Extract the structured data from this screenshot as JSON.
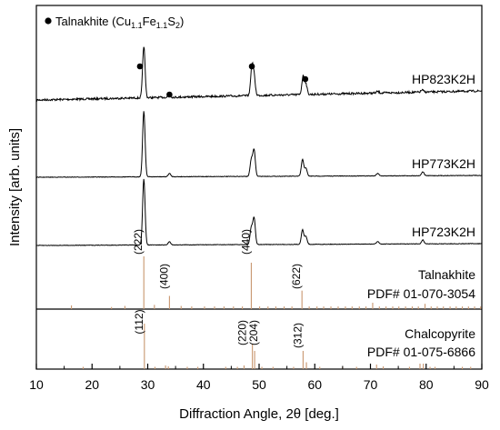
{
  "chart_data": {
    "type": "line",
    "xlabel": "Diffraction Angle, 2θ [deg.]",
    "ylabel": "Intensity [arb. units]",
    "xlim": [
      10,
      90
    ],
    "xticks": [
      10,
      20,
      30,
      40,
      50,
      60,
      70,
      80,
      90
    ],
    "grid": false,
    "legend": {
      "position": "top-left",
      "marker": "filled-circle",
      "text_prefix": "Talnakhite (Cu",
      "sub1": "1.1",
      "text_mid": "Fe",
      "sub2": "1.1",
      "text_mid2": "S",
      "sub3": "2",
      "text_suffix": ")"
    },
    "series": [
      {
        "name": "HP823K2H",
        "noise": "high",
        "peaks": [
          [
            29.3,
            1.0
          ],
          [
            33.9,
            0.05
          ],
          [
            48.7,
            0.55
          ],
          [
            49.1,
            0.35
          ],
          [
            57.9,
            0.35
          ],
          [
            58.4,
            0.2
          ],
          [
            71.3,
            0.03
          ],
          [
            79.3,
            0.04
          ]
        ],
        "markers_at": [
          28.6,
          33.9,
          48.7,
          58.3
        ]
      },
      {
        "name": "HP773K2H",
        "noise": "low",
        "peaks": [
          [
            29.3,
            1.0
          ],
          [
            33.9,
            0.05
          ],
          [
            48.6,
            0.25
          ],
          [
            49.1,
            0.4
          ],
          [
            57.8,
            0.25
          ],
          [
            58.4,
            0.12
          ],
          [
            71.3,
            0.04
          ],
          [
            79.4,
            0.06
          ]
        ]
      },
      {
        "name": "HP723K2H",
        "noise": "low",
        "peaks": [
          [
            29.3,
            1.0
          ],
          [
            33.9,
            0.05
          ],
          [
            48.6,
            0.25
          ],
          [
            49.1,
            0.4
          ],
          [
            57.8,
            0.22
          ],
          [
            58.4,
            0.12
          ],
          [
            71.3,
            0.04
          ],
          [
            79.4,
            0.06
          ]
        ]
      }
    ],
    "references": [
      {
        "name": "Talnakhite",
        "pdf": "PDF# 01-070-3054",
        "color": "#c8966e",
        "labeled": [
          {
            "x": 29.3,
            "label": "(222)"
          },
          {
            "x": 33.9,
            "label": "(400)"
          },
          {
            "x": 48.6,
            "label": "(440)"
          },
          {
            "x": 57.7,
            "label": "(622)"
          }
        ],
        "lines": [
          [
            16.3,
            0.07
          ],
          [
            23.5,
            0.04
          ],
          [
            25.9,
            0.06
          ],
          [
            29.3,
            1.0
          ],
          [
            31.2,
            0.08
          ],
          [
            33.9,
            0.25
          ],
          [
            36.0,
            0.06
          ],
          [
            37.9,
            0.05
          ],
          [
            40.2,
            0.05
          ],
          [
            42.0,
            0.05
          ],
          [
            43.7,
            0.05
          ],
          [
            45.4,
            0.05
          ],
          [
            47.0,
            0.05
          ],
          [
            48.6,
            0.88
          ],
          [
            50.1,
            0.05
          ],
          [
            51.6,
            0.05
          ],
          [
            53.0,
            0.05
          ],
          [
            54.5,
            0.05
          ],
          [
            55.9,
            0.05
          ],
          [
            57.7,
            0.35
          ],
          [
            59.0,
            0.05
          ],
          [
            60.4,
            0.05
          ],
          [
            61.6,
            0.05
          ],
          [
            62.9,
            0.05
          ],
          [
            64.2,
            0.05
          ],
          [
            65.5,
            0.05
          ],
          [
            66.7,
            0.05
          ],
          [
            68.0,
            0.05
          ],
          [
            69.2,
            0.05
          ],
          [
            70.4,
            0.12
          ],
          [
            71.6,
            0.05
          ],
          [
            72.8,
            0.05
          ],
          [
            74.0,
            0.05
          ],
          [
            75.1,
            0.05
          ],
          [
            76.3,
            0.05
          ],
          [
            77.5,
            0.05
          ],
          [
            78.6,
            0.05
          ],
          [
            79.8,
            0.1
          ],
          [
            80.9,
            0.05
          ],
          [
            82.0,
            0.05
          ],
          [
            83.1,
            0.05
          ],
          [
            84.3,
            0.05
          ],
          [
            85.4,
            0.05
          ],
          [
            86.5,
            0.05
          ],
          [
            87.6,
            0.05
          ],
          [
            88.7,
            0.05
          ],
          [
            89.8,
            0.05
          ]
        ]
      },
      {
        "name": "Chalcopyrite",
        "pdf": "PDF#  01-075-6866",
        "color": "#c8966e",
        "labeled": [
          {
            "x": 29.4,
            "label": "(112)"
          },
          {
            "x": 48.8,
            "label": "(220)"
          },
          {
            "x": 49.2,
            "label": "(204)"
          },
          {
            "x": 57.9,
            "label": "(312)"
          }
        ],
        "lines": [
          [
            18.4,
            0.05
          ],
          [
            29.4,
            1.0
          ],
          [
            31.3,
            0.05
          ],
          [
            33.2,
            0.08
          ],
          [
            33.7,
            0.06
          ],
          [
            37.1,
            0.05
          ],
          [
            39.0,
            0.05
          ],
          [
            44.0,
            0.05
          ],
          [
            46.1,
            0.05
          ],
          [
            47.3,
            0.08
          ],
          [
            48.8,
            0.55
          ],
          [
            49.2,
            0.4
          ],
          [
            50.5,
            0.05
          ],
          [
            52.5,
            0.05
          ],
          [
            56.2,
            0.05
          ],
          [
            57.9,
            0.4
          ],
          [
            58.5,
            0.15
          ],
          [
            60.9,
            0.05
          ],
          [
            65.0,
            0.05
          ],
          [
            67.5,
            0.05
          ],
          [
            71.1,
            0.1
          ],
          [
            72.3,
            0.06
          ],
          [
            77.0,
            0.05
          ],
          [
            78.9,
            0.12
          ],
          [
            79.5,
            0.12
          ],
          [
            80.7,
            0.05
          ],
          [
            81.6,
            0.05
          ],
          [
            86.5,
            0.05
          ],
          [
            88.0,
            0.05
          ]
        ]
      }
    ]
  }
}
